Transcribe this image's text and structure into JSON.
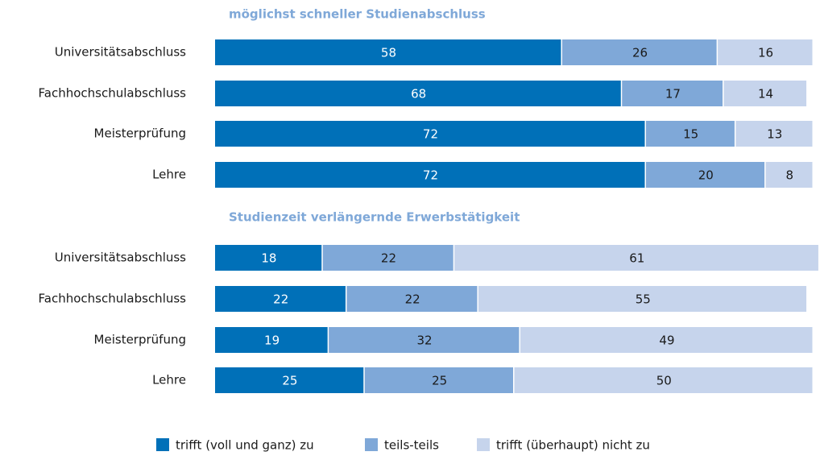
{
  "chart_data": [
    {
      "type": "stacked-bar-horizontal",
      "title": "möglichst schneller Studienabschluss",
      "categories": [
        "Universitätsabschluss",
        "Fachhochschulabschluss",
        "Meisterprüfung",
        "Lehre"
      ],
      "xlim": [
        0,
        100
      ],
      "series": [
        {
          "name": "trifft (voll und ganz) zu",
          "color": "#0070b8",
          "values": [
            58,
            68,
            72,
            72
          ]
        },
        {
          "name": "teils-teils",
          "color": "#7fa8d8",
          "values": [
            26,
            17,
            15,
            20
          ]
        },
        {
          "name": "trifft (überhaupt) nicht zu",
          "color": "#c6d4ec",
          "values": [
            16,
            14,
            13,
            8
          ]
        }
      ]
    },
    {
      "type": "stacked-bar-horizontal",
      "title": "Studienzeit verlängernde Erwerbstätigkeit",
      "categories": [
        "Universitätsabschluss",
        "Fachhochschulabschluss",
        "Meisterprüfung",
        "Lehre"
      ],
      "xlim": [
        0,
        100
      ],
      "series": [
        {
          "name": "trifft (voll und ganz) zu",
          "color": "#0070b8",
          "values": [
            18,
            22,
            19,
            25
          ]
        },
        {
          "name": "teils-teils",
          "color": "#7fa8d8",
          "values": [
            22,
            22,
            32,
            25
          ]
        },
        {
          "name": "trifft (überhaupt) nicht zu",
          "color": "#c6d4ec",
          "values": [
            61,
            55,
            49,
            50
          ]
        }
      ]
    }
  ]
}
